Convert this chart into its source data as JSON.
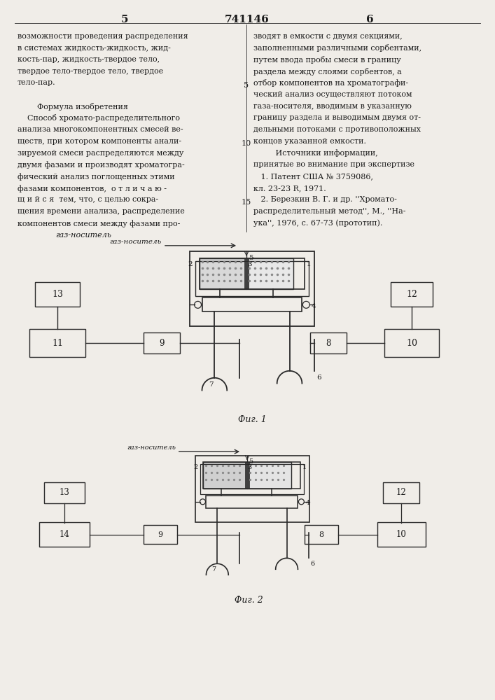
{
  "page_width": 7.07,
  "page_height": 10.0,
  "bg_color": "#f0ede8",
  "text_color": "#1a1a1a",
  "line_color": "#2a2a2a",
  "header": {
    "left_num": "5",
    "center_num": "741146",
    "right_num": "6"
  },
  "left_col_lines": [
    "возможности проведения распределения",
    "в системах жидкость-жидкость, жид-",
    "кость-пар, жидкость-твердое тело,",
    "твердое тело-твердое тело, твердое",
    "тело-пар.",
    "",
    "        Формула изобретения",
    "    Способ хромато-распределительного",
    "анализа многокомпонентных смесей ве-",
    "ществ, при котором компоненты анали-",
    "зируемой смеси распределяются между",
    "двумя фазами и производят хроматогра-",
    "фический анализ поглощенных этими",
    "фазами компонентов,  о т л и ч а ю -",
    "щ и й с я  тем, что, с целью сокра-",
    "щения времени анализа, распределение",
    "компонентов смеси между фазами про-",
    "                газ-носитель"
  ],
  "right_col_lines": [
    "зводят в емкости с двумя секциями,",
    "заполненными различными сорбентами,",
    "путем ввода пробы смеси в границу",
    "раздела между слоями сорбентов, а",
    "отбор компонентов на хроматографи-",
    "ческий анализ осуществляют потоком",
    "газа-носителя, вводимым в указанную",
    "границу раздела и выводимым двумя от-",
    "дельными потоками с противоположных",
    "концов указанной емкости.",
    "         Источники информации,",
    "принятые во внимание при экспертизе",
    "   1. Патент США № 3759086,",
    "кл. 23-23 R, 1971.",
    "   2. Березкин В. Г. и др. ''Хромато-",
    "распределительный метод'', М., ''На-",
    "ука'', 1976, с. 67-73 (прототип)."
  ],
  "fig1_caption": "Фиг. 1",
  "fig2_caption": "Фиг. 2"
}
